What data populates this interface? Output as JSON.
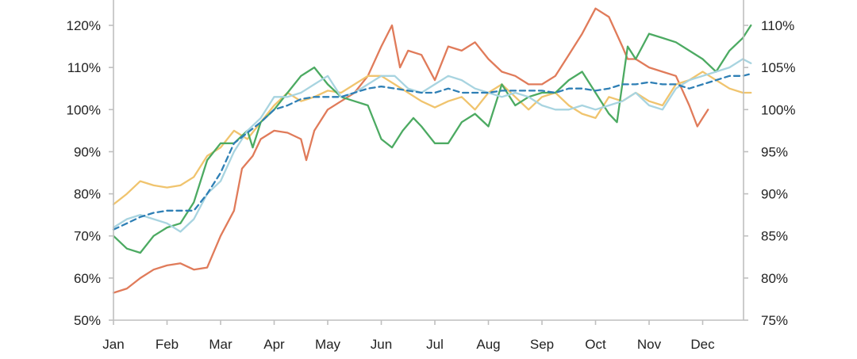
{
  "chart_data": {
    "type": "line",
    "title": "",
    "xlabel": "",
    "ylabel": "",
    "x_categories": [
      "Jan",
      "Feb",
      "Mar",
      "Apr",
      "May",
      "Jun",
      "Jul",
      "Aug",
      "Sep",
      "Oct",
      "Nov",
      "Dec"
    ],
    "x_range": [
      0,
      11.9
    ],
    "ylim_left": [
      50,
      120
    ],
    "ylim_right": [
      75,
      110
    ],
    "left_ticks": [
      "50%",
      "60%",
      "70%",
      "80%",
      "90%",
      "100%",
      "110%",
      "120%"
    ],
    "left_tick_values": [
      50,
      60,
      70,
      80,
      90,
      100,
      110,
      120
    ],
    "right_ticks": [
      "75%",
      "80%",
      "85%",
      "90%",
      "95%",
      "100%",
      "105%",
      "110%"
    ],
    "right_tick_values": [
      75,
      80,
      85,
      90,
      95,
      100,
      105,
      110
    ],
    "grid": false,
    "legend": "none",
    "series": [
      {
        "color": "#e07b5a",
        "axis": "left",
        "style": "solid",
        "points": [
          [
            0,
            56.5
          ],
          [
            0.25,
            57.5
          ],
          [
            0.5,
            60
          ],
          [
            0.75,
            62
          ],
          [
            1,
            63
          ],
          [
            1.25,
            63.5
          ],
          [
            1.5,
            62
          ],
          [
            1.75,
            62.5
          ],
          [
            2,
            70
          ],
          [
            2.25,
            76
          ],
          [
            2.4,
            86
          ],
          [
            2.6,
            89
          ],
          [
            2.75,
            93
          ],
          [
            3,
            95
          ],
          [
            3.25,
            94.5
          ],
          [
            3.5,
            93
          ],
          [
            3.6,
            88
          ],
          [
            3.75,
            95
          ],
          [
            4,
            100
          ],
          [
            4.25,
            102
          ],
          [
            4.5,
            104
          ],
          [
            4.75,
            108
          ],
          [
            5,
            115
          ],
          [
            5.2,
            120
          ],
          [
            5.35,
            110
          ],
          [
            5.5,
            114
          ],
          [
            5.75,
            113
          ],
          [
            6,
            107
          ],
          [
            6.25,
            115
          ],
          [
            6.5,
            114
          ],
          [
            6.75,
            116
          ],
          [
            7,
            112
          ],
          [
            7.25,
            109
          ],
          [
            7.5,
            108
          ],
          [
            7.75,
            106
          ],
          [
            8,
            106
          ],
          [
            8.25,
            108
          ],
          [
            8.5,
            113
          ],
          [
            8.75,
            118
          ],
          [
            9,
            124
          ],
          [
            9.25,
            122
          ],
          [
            9.5,
            115
          ],
          [
            9.6,
            112
          ],
          [
            9.75,
            112
          ],
          [
            10,
            110
          ],
          [
            10.25,
            109
          ],
          [
            10.5,
            108
          ],
          [
            10.75,
            101
          ],
          [
            10.9,
            96
          ],
          [
            11,
            98
          ],
          [
            11.1,
            100
          ]
        ]
      },
      {
        "color": "#f0c46e",
        "axis": "left",
        "style": "solid",
        "points": [
          [
            0,
            77.5
          ],
          [
            0.25,
            80
          ],
          [
            0.5,
            83
          ],
          [
            0.75,
            82
          ],
          [
            1,
            81.5
          ],
          [
            1.25,
            82
          ],
          [
            1.5,
            84
          ],
          [
            1.75,
            89
          ],
          [
            2,
            91
          ],
          [
            2.25,
            95
          ],
          [
            2.5,
            93
          ],
          [
            2.75,
            97
          ],
          [
            3,
            101
          ],
          [
            3.25,
            104
          ],
          [
            3.5,
            102
          ],
          [
            3.75,
            103
          ],
          [
            4,
            104.5
          ],
          [
            4.25,
            104
          ],
          [
            4.5,
            106
          ],
          [
            4.75,
            108
          ],
          [
            5,
            108
          ],
          [
            5.25,
            106
          ],
          [
            5.5,
            104
          ],
          [
            5.75,
            102
          ],
          [
            6,
            100.5
          ],
          [
            6.25,
            102
          ],
          [
            6.5,
            103
          ],
          [
            6.75,
            100
          ],
          [
            7,
            104
          ],
          [
            7.25,
            106
          ],
          [
            7.5,
            103
          ],
          [
            7.75,
            100
          ],
          [
            8,
            103
          ],
          [
            8.25,
            104
          ],
          [
            8.5,
            101
          ],
          [
            8.75,
            99
          ],
          [
            9,
            98
          ],
          [
            9.25,
            103
          ],
          [
            9.5,
            102
          ],
          [
            9.75,
            104
          ],
          [
            10,
            102
          ],
          [
            10.25,
            101
          ],
          [
            10.5,
            106
          ],
          [
            10.75,
            107
          ],
          [
            11,
            109
          ],
          [
            11.25,
            107
          ],
          [
            11.5,
            105
          ],
          [
            11.75,
            104
          ],
          [
            11.9,
            104
          ]
        ]
      },
      {
        "color": "#4caa62",
        "axis": "left",
        "style": "solid",
        "points": [
          [
            0,
            70
          ],
          [
            0.25,
            67
          ],
          [
            0.5,
            66
          ],
          [
            0.75,
            70
          ],
          [
            1,
            72
          ],
          [
            1.25,
            73
          ],
          [
            1.5,
            78
          ],
          [
            1.75,
            88
          ],
          [
            2,
            92
          ],
          [
            2.25,
            92
          ],
          [
            2.5,
            95
          ],
          [
            2.6,
            91
          ],
          [
            2.75,
            97
          ],
          [
            3,
            100
          ],
          [
            3.25,
            104
          ],
          [
            3.5,
            108
          ],
          [
            3.75,
            110
          ],
          [
            4,
            106
          ],
          [
            4.25,
            103
          ],
          [
            4.5,
            102
          ],
          [
            4.75,
            101
          ],
          [
            5,
            93
          ],
          [
            5.2,
            91
          ],
          [
            5.4,
            95
          ],
          [
            5.6,
            98
          ],
          [
            5.75,
            96
          ],
          [
            6,
            92
          ],
          [
            6.25,
            92
          ],
          [
            6.5,
            97
          ],
          [
            6.75,
            99
          ],
          [
            7,
            96
          ],
          [
            7.25,
            106
          ],
          [
            7.5,
            101
          ],
          [
            7.75,
            103
          ],
          [
            8,
            104
          ],
          [
            8.25,
            104
          ],
          [
            8.5,
            107
          ],
          [
            8.75,
            109
          ],
          [
            9,
            104
          ],
          [
            9.25,
            99
          ],
          [
            9.4,
            97
          ],
          [
            9.6,
            115
          ],
          [
            9.75,
            112
          ],
          [
            10,
            118
          ],
          [
            10.25,
            117
          ],
          [
            10.5,
            116
          ],
          [
            10.75,
            114
          ],
          [
            11,
            112
          ],
          [
            11.25,
            109
          ],
          [
            11.5,
            114
          ],
          [
            11.75,
            117
          ],
          [
            11.9,
            120
          ]
        ]
      },
      {
        "color": "#a8d4e0",
        "axis": "left",
        "style": "solid",
        "points": [
          [
            0,
            72
          ],
          [
            0.25,
            74
          ],
          [
            0.5,
            75
          ],
          [
            0.75,
            74
          ],
          [
            1,
            73
          ],
          [
            1.25,
            71
          ],
          [
            1.5,
            74
          ],
          [
            1.75,
            80
          ],
          [
            2,
            83
          ],
          [
            2.25,
            90
          ],
          [
            2.5,
            95
          ],
          [
            2.75,
            98
          ],
          [
            3,
            103
          ],
          [
            3.25,
            103
          ],
          [
            3.5,
            104
          ],
          [
            3.75,
            106
          ],
          [
            4,
            108
          ],
          [
            4.25,
            103
          ],
          [
            4.5,
            104
          ],
          [
            4.75,
            106
          ],
          [
            5,
            108
          ],
          [
            5.25,
            108
          ],
          [
            5.5,
            105
          ],
          [
            5.75,
            104
          ],
          [
            6,
            106
          ],
          [
            6.25,
            108
          ],
          [
            6.5,
            107
          ],
          [
            6.75,
            105
          ],
          [
            7,
            104
          ],
          [
            7.25,
            103
          ],
          [
            7.5,
            104
          ],
          [
            7.75,
            103
          ],
          [
            8,
            101
          ],
          [
            8.25,
            100
          ],
          [
            8.5,
            100
          ],
          [
            8.75,
            101
          ],
          [
            9,
            100
          ],
          [
            9.25,
            101
          ],
          [
            9.5,
            102
          ],
          [
            9.75,
            104
          ],
          [
            10,
            101
          ],
          [
            10.25,
            100
          ],
          [
            10.5,
            105
          ],
          [
            10.75,
            107
          ],
          [
            11,
            108
          ],
          [
            11.25,
            109
          ],
          [
            11.5,
            110
          ],
          [
            11.75,
            112
          ],
          [
            11.9,
            111
          ]
        ]
      },
      {
        "color": "#2e7fb5",
        "axis": "left",
        "style": "dashed",
        "points": [
          [
            0,
            71.5
          ],
          [
            0.25,
            73
          ],
          [
            0.5,
            74.5
          ],
          [
            0.75,
            75.5
          ],
          [
            1,
            76
          ],
          [
            1.25,
            76
          ],
          [
            1.5,
            76
          ],
          [
            1.75,
            80
          ],
          [
            2,
            85
          ],
          [
            2.25,
            92
          ],
          [
            2.5,
            94.5
          ],
          [
            2.75,
            97
          ],
          [
            3,
            100
          ],
          [
            3.25,
            101
          ],
          [
            3.5,
            102.5
          ],
          [
            3.75,
            103
          ],
          [
            4,
            103
          ],
          [
            4.25,
            103
          ],
          [
            4.5,
            104
          ],
          [
            4.75,
            105
          ],
          [
            5,
            105.5
          ],
          [
            5.25,
            105
          ],
          [
            5.5,
            104.5
          ],
          [
            5.75,
            104
          ],
          [
            6,
            104
          ],
          [
            6.25,
            105
          ],
          [
            6.5,
            104
          ],
          [
            6.75,
            104
          ],
          [
            7,
            104
          ],
          [
            7.25,
            104.5
          ],
          [
            7.5,
            104.5
          ],
          [
            7.75,
            104.5
          ],
          [
            8,
            104.5
          ],
          [
            8.25,
            104
          ],
          [
            8.5,
            105
          ],
          [
            8.75,
            105
          ],
          [
            9,
            104.5
          ],
          [
            9.25,
            105
          ],
          [
            9.5,
            106
          ],
          [
            9.75,
            106
          ],
          [
            10,
            106.5
          ],
          [
            10.25,
            106
          ],
          [
            10.5,
            106
          ],
          [
            10.75,
            105
          ],
          [
            11,
            106
          ],
          [
            11.25,
            107
          ],
          [
            11.5,
            108
          ],
          [
            11.75,
            108
          ],
          [
            11.9,
            108.5
          ]
        ]
      }
    ]
  }
}
